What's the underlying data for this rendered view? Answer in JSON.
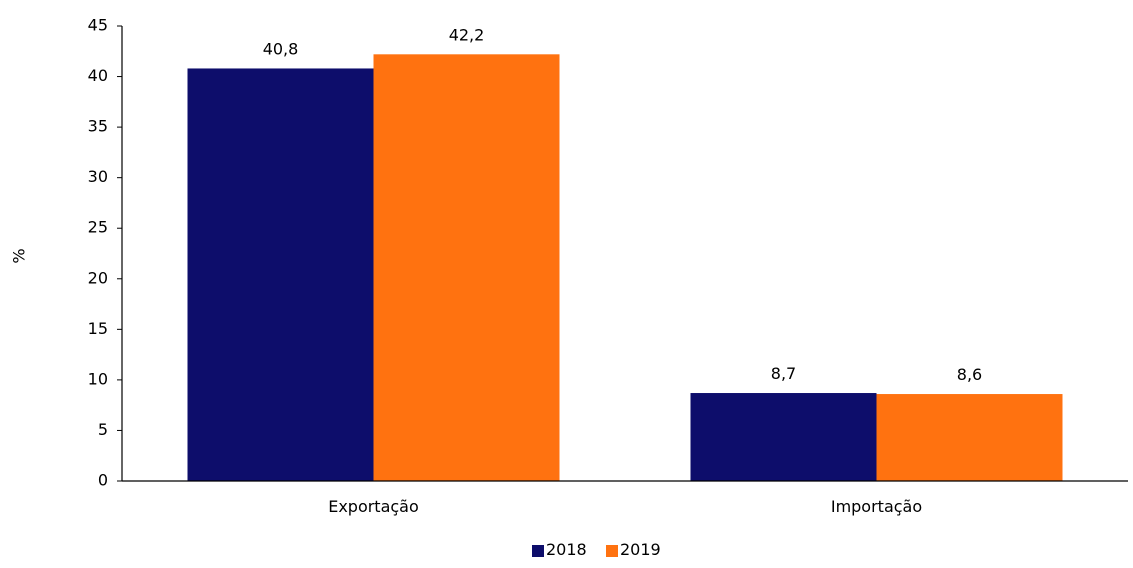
{
  "chart_data": {
    "type": "bar",
    "title": "",
    "xlabel": "",
    "ylabel": "%",
    "categories": [
      "Exportação",
      "Importação"
    ],
    "series": [
      {
        "name": "2018",
        "values": [
          40.8,
          8.7
        ],
        "labels": [
          "40,8",
          "8,7"
        ],
        "color": "#0d0d6b"
      },
      {
        "name": "2019",
        "values": [
          42.2,
          8.6
        ],
        "labels": [
          "42,2",
          "8,6"
        ],
        "color": "#ff7210"
      }
    ],
    "ylim": [
      0,
      45
    ],
    "yticks": [
      0,
      5,
      10,
      15,
      20,
      25,
      30,
      35,
      40,
      45
    ],
    "grid": false,
    "legend_position": "bottom-center"
  }
}
